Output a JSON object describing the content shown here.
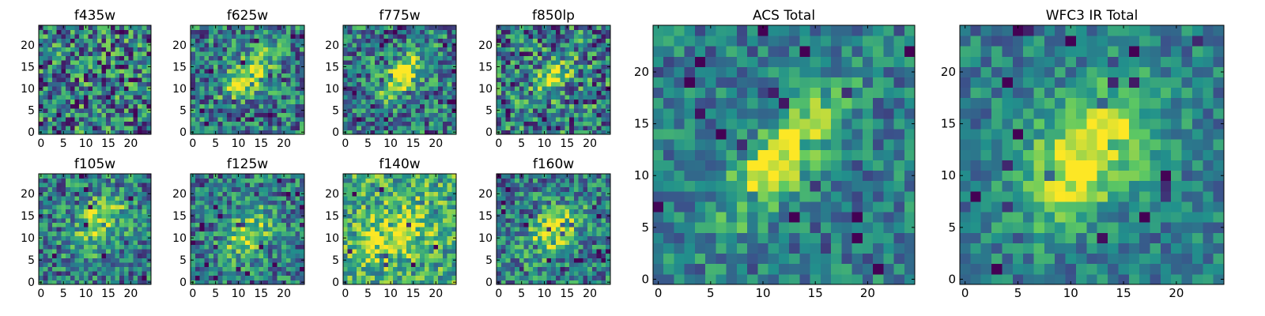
{
  "figure": {
    "colormap": "viridis",
    "colormap_stops": [
      "#440154",
      "#3b528b",
      "#21918c",
      "#5ec962",
      "#fde725"
    ]
  },
  "chart_data": [
    {
      "type": "heatmap",
      "title": "f435w",
      "grid_size": [
        25,
        25
      ],
      "xlim": [
        -0.5,
        24.5
      ],
      "ylim": [
        -0.5,
        24.5
      ],
      "xticks": [
        0,
        5,
        10,
        15,
        20
      ],
      "yticks": [
        0,
        5,
        10,
        15,
        20
      ],
      "source": null,
      "noise": 0.42,
      "grid": false
    },
    {
      "type": "heatmap",
      "title": "f625w",
      "grid_size": [
        25,
        25
      ],
      "xlim": [
        -0.5,
        24.5
      ],
      "ylim": [
        -0.5,
        24.5
      ],
      "xticks": [
        0,
        5,
        10,
        15,
        20
      ],
      "yticks": [
        0,
        5,
        10,
        15,
        20
      ],
      "source": {
        "x": 12.5,
        "y": 13.5,
        "sigma_major": 4.5,
        "sigma_minor": 2.2,
        "angle_deg": 45,
        "amplitude": 0.55
      },
      "noise": 0.34,
      "grid": false
    },
    {
      "type": "heatmap",
      "title": "f775w",
      "grid_size": [
        25,
        25
      ],
      "xlim": [
        -0.5,
        24.5
      ],
      "ylim": [
        -0.5,
        24.5
      ],
      "xticks": [
        0,
        5,
        10,
        15,
        20
      ],
      "yticks": [
        0,
        5,
        10,
        15,
        20
      ],
      "source": {
        "x": 12.5,
        "y": 13.0,
        "sigma_major": 4.2,
        "sigma_minor": 2.0,
        "angle_deg": 50,
        "amplitude": 0.6
      },
      "noise": 0.34,
      "grid": false
    },
    {
      "type": "heatmap",
      "title": "f850lp",
      "grid_size": [
        25,
        25
      ],
      "xlim": [
        -0.5,
        24.5
      ],
      "ylim": [
        -0.5,
        24.5
      ],
      "xticks": [
        0,
        5,
        10,
        15,
        20
      ],
      "yticks": [
        0,
        5,
        10,
        15,
        20
      ],
      "source": {
        "x": 12.0,
        "y": 12.5,
        "sigma_major": 4.0,
        "sigma_minor": 2.4,
        "angle_deg": 45,
        "amplitude": 0.4
      },
      "noise": 0.4,
      "grid": false
    },
    {
      "type": "heatmap",
      "title": "f105w",
      "grid_size": [
        25,
        25
      ],
      "xlim": [
        -0.5,
        24.5
      ],
      "ylim": [
        -0.5,
        24.5
      ],
      "xticks": [
        0,
        5,
        10,
        15,
        20
      ],
      "yticks": [
        0,
        5,
        10,
        15,
        20
      ],
      "source": {
        "x": 13.0,
        "y": 13.5,
        "sigma_major": 5.0,
        "sigma_minor": 3.2,
        "angle_deg": 45,
        "amplitude": 0.45
      },
      "noise": 0.32,
      "grid": false
    },
    {
      "type": "heatmap",
      "title": "f125w",
      "grid_size": [
        25,
        25
      ],
      "xlim": [
        -0.5,
        24.5
      ],
      "ylim": [
        -0.5,
        24.5
      ],
      "xticks": [
        0,
        5,
        10,
        15,
        20
      ],
      "yticks": [
        0,
        5,
        10,
        15,
        20
      ],
      "source": {
        "x": 12.0,
        "y": 11.0,
        "sigma_major": 5.0,
        "sigma_minor": 2.8,
        "angle_deg": 55,
        "amplitude": 0.45
      },
      "noise": 0.3,
      "grid": false
    },
    {
      "type": "heatmap",
      "title": "f140w",
      "grid_size": [
        25,
        25
      ],
      "xlim": [
        -0.5,
        24.5
      ],
      "ylim": [
        -0.5,
        24.5
      ],
      "xticks": [
        0,
        5,
        10,
        15,
        20
      ],
      "yticks": [
        0,
        5,
        10,
        15,
        20
      ],
      "source": {
        "x": 11.0,
        "y": 11.0,
        "sigma_major": 6.0,
        "sigma_minor": 3.5,
        "angle_deg": 40,
        "amplitude": 0.3
      },
      "noise": 0.3,
      "base": 0.62,
      "grid": false
    },
    {
      "type": "heatmap",
      "title": "f160w",
      "grid_size": [
        25,
        25
      ],
      "xlim": [
        -0.5,
        24.5
      ],
      "ylim": [
        -0.5,
        24.5
      ],
      "xticks": [
        0,
        5,
        10,
        15,
        20
      ],
      "yticks": [
        0,
        5,
        10,
        15,
        20
      ],
      "source": {
        "x": 12.0,
        "y": 11.5,
        "sigma_major": 5.0,
        "sigma_minor": 3.0,
        "angle_deg": 45,
        "amplitude": 0.5
      },
      "noise": 0.3,
      "grid": false
    },
    {
      "type": "heatmap",
      "title": "ACS Total",
      "grid_size": [
        25,
        25
      ],
      "xlim": [
        -0.5,
        24.5
      ],
      "ylim": [
        -0.5,
        24.5
      ],
      "xticks": [
        0,
        5,
        10,
        15,
        20
      ],
      "yticks": [
        0,
        5,
        10,
        15,
        20
      ],
      "source": {
        "x": 12.0,
        "y": 12.0,
        "sigma_major": 5.2,
        "sigma_minor": 1.9,
        "angle_deg": 50,
        "amplitude": 0.62
      },
      "noise": 0.22,
      "grid": false
    },
    {
      "type": "heatmap",
      "title": "WFC3 IR Total",
      "grid_size": [
        25,
        25
      ],
      "xlim": [
        -0.5,
        24.5
      ],
      "ylim": [
        -0.5,
        24.5
      ],
      "xticks": [
        0,
        5,
        10,
        15,
        20
      ],
      "yticks": [
        0,
        5,
        10,
        15,
        20
      ],
      "source": {
        "x": 11.5,
        "y": 12.0,
        "sigma_major": 5.2,
        "sigma_minor": 3.2,
        "angle_deg": 48,
        "amplitude": 0.6
      },
      "noise": 0.2,
      "grid": false
    }
  ]
}
